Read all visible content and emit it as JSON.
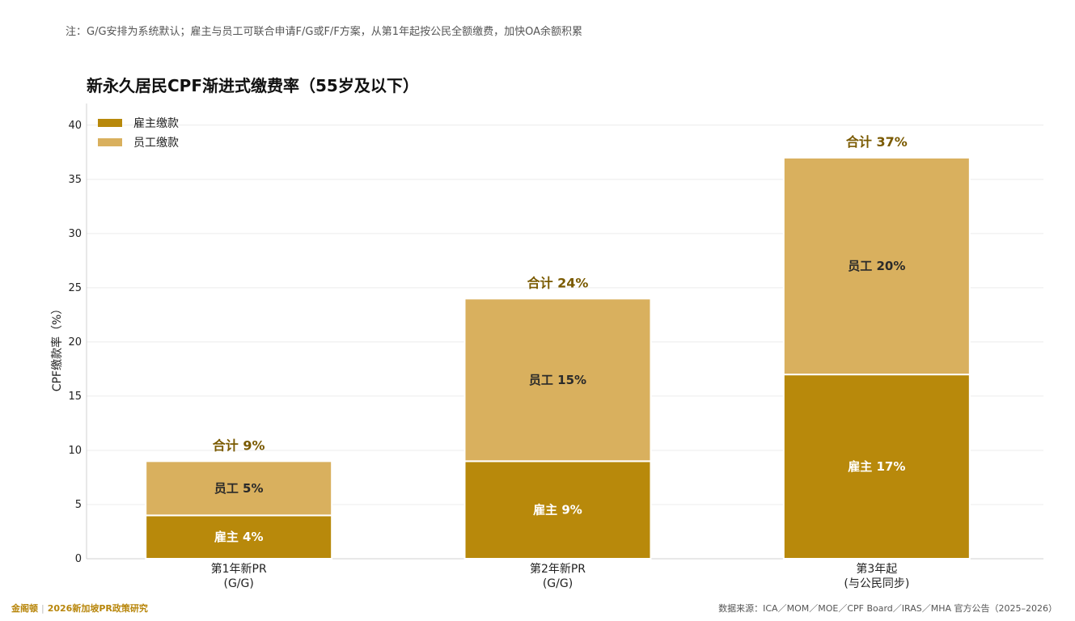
{
  "note": "注：G/G安排为系统默认；雇主与员工可联合申请F/G或F/F方案，从第1年起按公民全额缴费，加快OA余额积累",
  "footer": {
    "brand": "金阁顿",
    "subtitle": "2026新加坡PR政策研究",
    "source": "数据来源：ICA／MOM／MOE／CPF Board／IRAS／MHA 官方公告（2025–2026）"
  },
  "colors": {
    "employer": "#b8890b",
    "employee": "#d9b05e",
    "total_label": "#7a5a00"
  },
  "chart_data": {
    "type": "bar",
    "stacked": true,
    "title": "新永久居民CPF渐进式缴费率（55岁及以下）",
    "xlabel": "",
    "ylabel": "CPF缴款率（%）",
    "ylim": [
      0,
      42
    ],
    "yticks": [
      0,
      5,
      10,
      15,
      20,
      25,
      30,
      35,
      40
    ],
    "grid": true,
    "legend_position": "top-left",
    "categories": [
      [
        "第1年新PR",
        "(G/G)"
      ],
      [
        "第2年新PR",
        "(G/G)"
      ],
      [
        "第3年起",
        "(与公民同步)"
      ]
    ],
    "series": [
      {
        "name": "雇主缴款",
        "key": "employer",
        "values": [
          4,
          9,
          17
        ],
        "labels": [
          "雇主 4%",
          "雇主 9%",
          "雇主 17%"
        ]
      },
      {
        "name": "员工缴款",
        "key": "employee",
        "values": [
          5,
          15,
          20
        ],
        "labels": [
          "员工 5%",
          "员工 15%",
          "员工 20%"
        ]
      }
    ],
    "totals": [
      9,
      24,
      37
    ],
    "total_labels": [
      "合计 9%",
      "合计 24%",
      "合计 37%"
    ]
  }
}
